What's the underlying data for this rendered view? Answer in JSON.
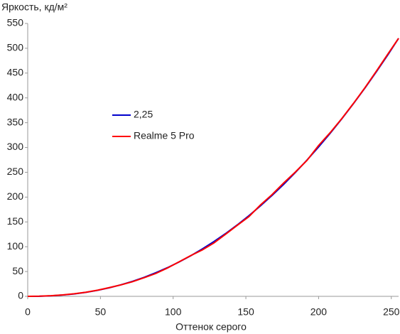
{
  "chart_data": {
    "type": "line",
    "y_label": "Яркость, кд/м²",
    "x_label": "Оттенок серого",
    "x": [
      0,
      8,
      16,
      24,
      32,
      40,
      48,
      56,
      64,
      72,
      80,
      88,
      96,
      104,
      112,
      120,
      128,
      136,
      144,
      152,
      160,
      168,
      176,
      184,
      192,
      200,
      208,
      216,
      224,
      232,
      240,
      248,
      255
    ],
    "series": [
      {
        "name": "2,25",
        "color": "#0000cc",
        "values": [
          0,
          0.2,
          1.0,
          2.6,
          4.9,
          8.1,
          12.1,
          17.2,
          23.2,
          30.2,
          38.3,
          47.5,
          57.7,
          69.1,
          81.7,
          95.4,
          110.3,
          126.4,
          143.8,
          162.3,
          182.2,
          203.4,
          225.8,
          249.5,
          274.6,
          301.1,
          328.8,
          357.9,
          388.5,
          420.4,
          453.7,
          488.4,
          520
        ]
      },
      {
        "name": "Realme 5 Pro",
        "color": "#ff0000",
        "values": [
          0,
          0.3,
          1.2,
          2.8,
          5.2,
          8.3,
          12.4,
          17.5,
          23.0,
          29.5,
          37.5,
          46.0,
          57.0,
          69.5,
          82.0,
          93.5,
          107.5,
          125.0,
          143.0,
          160.5,
          184.0,
          205.0,
          228.5,
          250.5,
          274.0,
          304.0,
          330.0,
          358.5,
          389.0,
          421.0,
          455.0,
          490.0,
          520
        ]
      }
    ],
    "xlim": [
      0,
      255
    ],
    "xticks": [
      0,
      50,
      100,
      150,
      200,
      250
    ],
    "ylim": [
      0,
      550
    ],
    "yticks": [
      0,
      50,
      100,
      150,
      200,
      250,
      300,
      350,
      400,
      450,
      500,
      550
    ],
    "legend": "center-left"
  }
}
